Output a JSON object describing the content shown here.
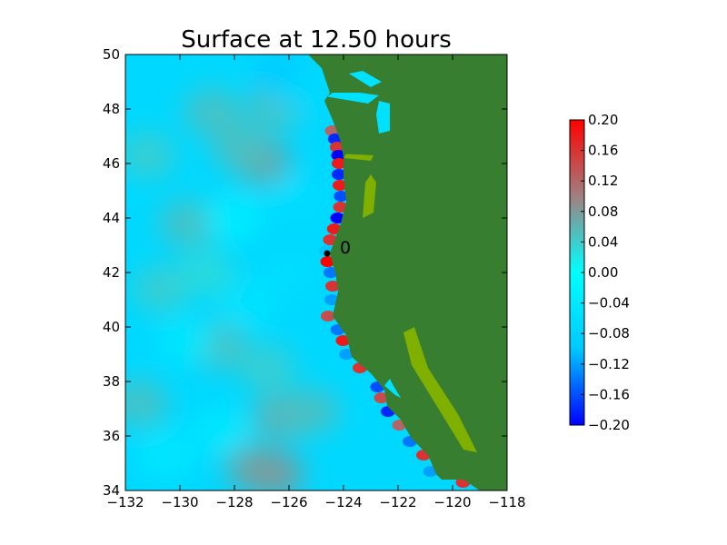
{
  "chart_data": {
    "type": "heatmap",
    "title": "Surface at 12.50 hours",
    "xlabel": "",
    "ylabel": "",
    "xlim": [
      -132,
      -118
    ],
    "ylim": [
      34,
      50
    ],
    "x_ticks": [
      -132,
      -130,
      -128,
      -126,
      -124,
      -122,
      -120,
      -118
    ],
    "x_tick_labels": [
      "−132",
      "−130",
      "−128",
      "−126",
      "−124",
      "−122",
      "−120",
      "−118"
    ],
    "y_ticks": [
      34,
      36,
      38,
      40,
      42,
      44,
      46,
      48,
      50
    ],
    "y_tick_labels": [
      "34",
      "36",
      "38",
      "40",
      "42",
      "44",
      "46",
      "48",
      "50"
    ],
    "colorbar": {
      "range": [
        -0.2,
        0.2
      ],
      "ticks": [
        0.2,
        0.16,
        0.12,
        0.08,
        0.04,
        0.0,
        -0.04,
        -0.08,
        -0.12,
        -0.16,
        -0.2
      ],
      "tick_labels": [
        "0.20",
        "0.16",
        "0.12",
        "0.08",
        "0.04",
        "0.00",
        "−0.04",
        "−0.08",
        "−0.12",
        "−0.16",
        "−0.20"
      ],
      "colors": [
        "#0000ff",
        "#00c8ff",
        "#00ffff",
        "#a08080",
        "#ff0000"
      ]
    },
    "land_color": "#377e31",
    "shallow_land_color": "#7fb000",
    "gauge": {
      "label": "0",
      "lon": -124.6,
      "lat": 42.7
    },
    "coastline": [
      [
        -125.3,
        50
      ],
      [
        -124.8,
        49.5
      ],
      [
        -124.5,
        48.6
      ],
      [
        -124.7,
        48.3
      ],
      [
        -124.4,
        47.6
      ],
      [
        -124.1,
        46.8
      ],
      [
        -124.0,
        46.2
      ],
      [
        -124.0,
        45.5
      ],
      [
        -123.9,
        44.6
      ],
      [
        -124.1,
        43.8
      ],
      [
        -124.5,
        42.7
      ],
      [
        -124.3,
        42.0
      ],
      [
        -124.2,
        41.3
      ],
      [
        -124.4,
        40.4
      ],
      [
        -123.9,
        39.7
      ],
      [
        -123.7,
        38.9
      ],
      [
        -123.0,
        38.3
      ],
      [
        -122.5,
        37.7
      ],
      [
        -122.4,
        37.1
      ],
      [
        -121.9,
        36.6
      ],
      [
        -121.5,
        35.9
      ],
      [
        -120.9,
        35.3
      ],
      [
        -120.6,
        34.6
      ],
      [
        -120.4,
        34.4
      ],
      [
        -119.6,
        34.4
      ],
      [
        -119.0,
        34.0
      ]
    ],
    "anomalies": [
      {
        "lon": -126.3,
        "lat": 36.7,
        "v": 0.06
      },
      {
        "lon": -127.3,
        "lat": 34.8,
        "v": 0.07
      },
      {
        "lon": -126.5,
        "lat": 34.6,
        "v": 0.08
      },
      {
        "lon": -125.2,
        "lat": 36.9,
        "v": 0.05
      },
      {
        "lon": -128.6,
        "lat": 39.3,
        "v": 0.05
      },
      {
        "lon": -131.5,
        "lat": 37.2,
        "v": 0.05
      },
      {
        "lon": -130.7,
        "lat": 41.4,
        "v": 0.04
      },
      {
        "lon": -129.7,
        "lat": 43.8,
        "v": 0.05
      },
      {
        "lon": -128.0,
        "lat": 44.0,
        "v": -0.03
      },
      {
        "lon": -128.8,
        "lat": 47.9,
        "v": 0.05
      },
      {
        "lon": -127.0,
        "lat": 46.1,
        "v": 0.07
      },
      {
        "lon": -127.8,
        "lat": 46.6,
        "v": 0.05
      },
      {
        "lon": -126.5,
        "lat": 48.1,
        "v": 0.05
      },
      {
        "lon": -131.2,
        "lat": 46.3,
        "v": 0.04
      },
      {
        "lon": -126.0,
        "lat": 42.0,
        "v": -0.06
      },
      {
        "lon": -127.5,
        "lat": 40.8,
        "v": -0.05
      },
      {
        "lon": -125.7,
        "lat": 44.7,
        "v": -0.06
      },
      {
        "lon": -126.2,
        "lat": 49.2,
        "v": -0.1
      },
      {
        "lon": -125.4,
        "lat": 48.7,
        "v": -0.07
      },
      {
        "lon": -130.5,
        "lat": 35.3,
        "v": -0.04
      },
      {
        "lon": -128.5,
        "lat": 36.2,
        "v": -0.04
      },
      {
        "lon": -129.8,
        "lat": 39.5,
        "v": -0.04
      },
      {
        "lon": -129.0,
        "lat": 42.0,
        "v": 0.03
      },
      {
        "lon": -126.8,
        "lat": 38.5,
        "v": 0.04
      }
    ],
    "coastal_band": [
      {
        "lat": 47.2,
        "v": 0.12
      },
      {
        "lat": 46.9,
        "v": -0.18
      },
      {
        "lat": 46.6,
        "v": 0.16
      },
      {
        "lat": 46.3,
        "v": -0.2
      },
      {
        "lat": 46.0,
        "v": 0.18
      },
      {
        "lat": 45.6,
        "v": -0.18
      },
      {
        "lat": 45.2,
        "v": 0.18
      },
      {
        "lat": 44.8,
        "v": -0.16
      },
      {
        "lat": 44.4,
        "v": 0.16
      },
      {
        "lat": 44.0,
        "v": -0.2
      },
      {
        "lat": 43.6,
        "v": 0.18
      },
      {
        "lat": 43.2,
        "v": 0.16
      },
      {
        "lat": 42.8,
        "v": -0.1
      },
      {
        "lat": 42.4,
        "v": 0.2
      },
      {
        "lat": 42.0,
        "v": -0.14
      },
      {
        "lat": 41.5,
        "v": 0.16
      },
      {
        "lat": 41.0,
        "v": -0.12
      },
      {
        "lat": 40.4,
        "v": 0.14
      },
      {
        "lat": 39.9,
        "v": -0.14
      },
      {
        "lat": 39.5,
        "v": 0.18
      },
      {
        "lat": 39.0,
        "v": -0.12
      },
      {
        "lat": 38.5,
        "v": 0.16
      },
      {
        "lat": 37.8,
        "v": -0.16
      },
      {
        "lat": 37.4,
        "v": 0.14
      },
      {
        "lat": 36.9,
        "v": -0.18
      },
      {
        "lat": 36.4,
        "v": 0.12
      },
      {
        "lat": 35.8,
        "v": -0.14
      },
      {
        "lat": 35.3,
        "v": 0.16
      },
      {
        "lat": 34.7,
        "v": -0.12
      },
      {
        "lat": 34.3,
        "v": 0.16
      }
    ]
  }
}
